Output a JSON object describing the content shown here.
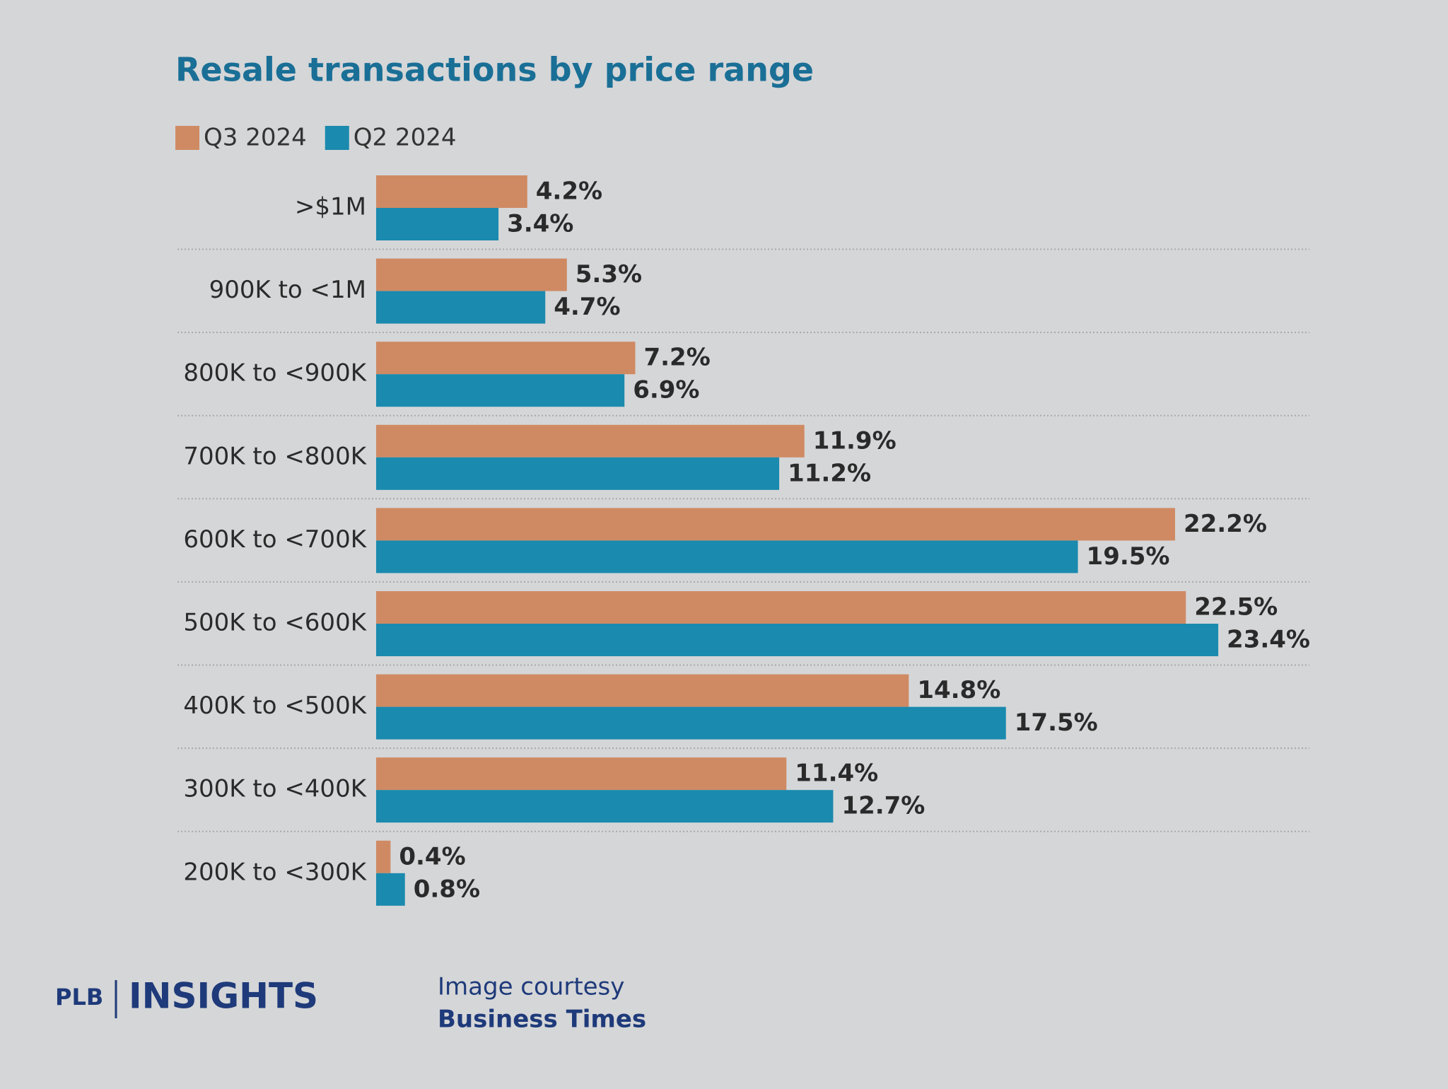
{
  "chart_data": {
    "type": "bar",
    "orientation": "horizontal",
    "title": "Resale transactions by price range",
    "categories": [
      ">$1M",
      "900K to <1M",
      "800K to <900K",
      "700K to <800K",
      "600K to <700K",
      "500K to <600K",
      "400K to <500K",
      "300K to <400K",
      "200K to <300K"
    ],
    "series": [
      {
        "name": "Q3 2024",
        "color": "#cf8a63",
        "values": [
          4.2,
          5.3,
          7.2,
          11.9,
          22.2,
          22.5,
          14.8,
          11.4,
          0.4
        ],
        "value_labels": [
          "4.2%",
          "5.3%",
          "7.2%",
          "11.9%",
          "22.2%",
          "22.5%",
          "14.8%",
          "11.4%",
          "0.4%"
        ]
      },
      {
        "name": "Q2 2024",
        "color": "#1a8aae",
        "values": [
          3.4,
          4.7,
          6.9,
          11.2,
          19.5,
          23.4,
          17.5,
          12.7,
          0.8
        ],
        "value_labels": [
          "3.4%",
          "4.7%",
          "6.9%",
          "11.2%",
          "19.5%",
          "23.4%",
          "17.5%",
          "12.7%",
          "0.8%"
        ]
      }
    ],
    "legend": "top-left",
    "grid": false
  },
  "footer": {
    "brand": "PLB",
    "product": "INSIGHTS",
    "credit_line": "Image courtesy",
    "credit_source": "Business Times"
  }
}
